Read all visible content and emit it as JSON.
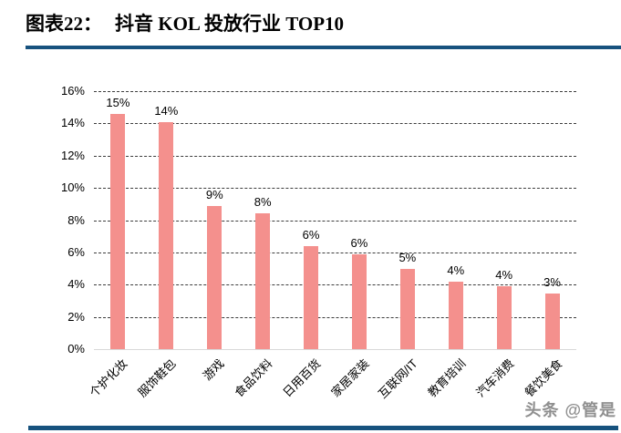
{
  "header": {
    "title_prefix": "图表22：",
    "title_text": "抖音 KOL 投放行业 TOP10",
    "rule_color": "#17527E"
  },
  "watermark": {
    "text": "头条 @管是",
    "color": "#8f8f8f"
  },
  "chart_data": {
    "type": "bar",
    "title": "抖音 KOL 投放行业 TOP10",
    "categories": [
      "个护化妆",
      "服饰鞋包",
      "游戏",
      "食品饮料",
      "日用百货",
      "家居家装",
      "互联网/IT",
      "教育培训",
      "汽车消费",
      "餐饮美食"
    ],
    "values": [
      15,
      14,
      9,
      8,
      6,
      6,
      5,
      4,
      4,
      3
    ],
    "value_labels": [
      "15%",
      "14%",
      "9%",
      "8%",
      "6%",
      "6%",
      "5%",
      "4%",
      "4%",
      "3%"
    ],
    "drawn_heights_pct": [
      14.6,
      14.1,
      8.9,
      8.4,
      6.4,
      5.9,
      4.95,
      4.2,
      3.9,
      3.45
    ],
    "xlabel": "",
    "ylabel": "",
    "ylim": [
      0,
      16
    ],
    "yticks": [
      {
        "value": 0,
        "label": "0%"
      },
      {
        "value": 2,
        "label": "2%"
      },
      {
        "value": 4,
        "label": "4%"
      },
      {
        "value": 6,
        "label": "6%"
      },
      {
        "value": 8,
        "label": "8%"
      },
      {
        "value": 10,
        "label": "10%"
      },
      {
        "value": 12,
        "label": "12%"
      },
      {
        "value": 14,
        "label": "14%"
      },
      {
        "value": 16,
        "label": "16%"
      }
    ],
    "grid": "horizontal-dashed",
    "legend": "none",
    "bar_color": "#F4908D",
    "gridline_color": "#3c3c3c",
    "baseline_color": "#d9d9d9"
  }
}
